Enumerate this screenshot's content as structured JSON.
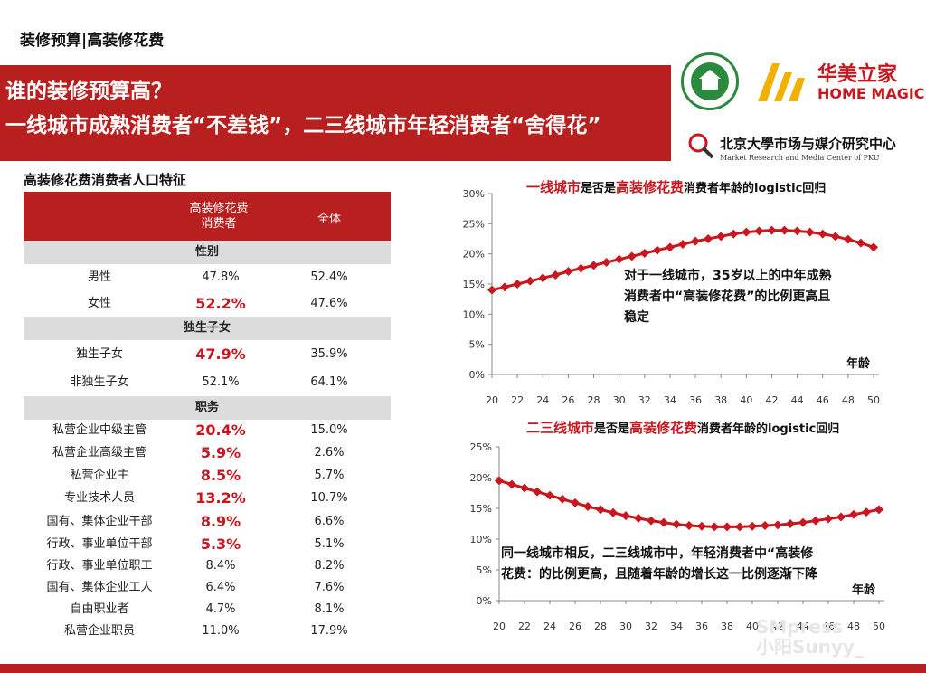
{
  "top_title": "装修预算|高装修花费",
  "banner": {
    "line1": "谁的装修预算高？",
    "line2": "一线城市成熟消费者“不差钱”，二三线城市年轻消费者“舍得花”"
  },
  "logos": {
    "home_magic_cn": "华美立家",
    "home_magic_en": "HOME MAGIC",
    "pku_cn": "北京大學市场与媒介研究中心",
    "pku_en": "Market Research and Media Center of PKU"
  },
  "table": {
    "title": "高装修花费消费者人口特征",
    "col1_line1": "高装修花费",
    "col1_line2": "消费者",
    "col2": "全体",
    "sections": [
      {
        "name": "性别",
        "rows": [
          {
            "label": "男性",
            "v1": "47.8%",
            "v2": "52.4%",
            "hl": false
          },
          {
            "label": "女性",
            "v1": "52.2%",
            "v2": "47.6%",
            "hl": true
          }
        ]
      },
      {
        "name": "独生子女",
        "rows": [
          {
            "label": "独生子女",
            "v1": "47.9%",
            "v2": "35.9%",
            "hl": true
          },
          {
            "label": "非独生子女",
            "v1": "52.1%",
            "v2": "64.1%",
            "hl": false
          }
        ]
      },
      {
        "name": "职务",
        "rows": [
          {
            "label": "私营企业中级主管",
            "v1": "20.4%",
            "v2": "15.0%",
            "hl": true
          },
          {
            "label": "私营企业高级主管",
            "v1": "5.9%",
            "v2": "2.6%",
            "hl": true
          },
          {
            "label": "私营企业主",
            "v1": "8.5%",
            "v2": "5.7%",
            "hl": true
          },
          {
            "label": "专业技术人员",
            "v1": "13.2%",
            "v2": "10.7%",
            "hl": true
          },
          {
            "label": "国有、集体企业干部",
            "v1": "8.9%",
            "v2": "6.6%",
            "hl": true
          },
          {
            "label": "行政、事业单位干部",
            "v1": "5.3%",
            "v2": "5.1%",
            "hl": true
          },
          {
            "label": "行政、事业单位职工",
            "v1": "8.4%",
            "v2": "8.2%",
            "hl": false
          },
          {
            "label": "国有、集体企业工人",
            "v1": "6.4%",
            "v2": "7.6%",
            "hl": false
          },
          {
            "label": "自由职业者",
            "v1": "4.7%",
            "v2": "8.1%",
            "hl": false
          },
          {
            "label": "私营企业职员",
            "v1": "11.0%",
            "v2": "17.9%",
            "hl": false
          }
        ]
      }
    ]
  },
  "charts": {
    "chart1": {
      "title_red1": "一线城市",
      "title_mid": "是否是",
      "title_red2": "高装修花费",
      "title_tail": "消费者年龄的logistic回归",
      "note_lines": [
        "对于一线城市，35岁以上的中年成熟",
        "消费者中“高装修花费”的比例更高且",
        "稳定"
      ],
      "xlabel": "年龄"
    },
    "chart2": {
      "title_red1": "二三线城市",
      "title_mid": "是否是",
      "title_red2": "高装修花费",
      "title_tail": "消费者年龄的logistic回归",
      "note_lines": [
        "同一线城市相反，二三线城市中，年轻消费者中“高装修",
        "花费：的比例更高，且随着年龄的增长这一比例逐渐下降"
      ],
      "xlabel": "年龄"
    }
  },
  "watermark": {
    "line1": "SMpress",
    "line2": "小阳Sunyy_"
  },
  "colors": {
    "accent": "#b81f1f",
    "highlight": "#c8171f",
    "section": "#dcdcdc"
  },
  "chart_data": [
    {
      "type": "line",
      "title": "一线城市是否是高装修花费消费者年龄的logistic回归",
      "xlabel": "年龄",
      "ylabel": "",
      "x": [
        20,
        21,
        22,
        23,
        24,
        25,
        26,
        27,
        28,
        29,
        30,
        31,
        32,
        33,
        34,
        35,
        36,
        37,
        38,
        39,
        40,
        41,
        42,
        43,
        44,
        45,
        46,
        47,
        48,
        49,
        50
      ],
      "series": [
        {
          "values": [
            14.0,
            14.5,
            15.0,
            15.5,
            16.0,
            16.5,
            17.1,
            17.6,
            18.1,
            18.6,
            19.1,
            19.6,
            20.1,
            20.6,
            21.1,
            21.6,
            22.1,
            22.5,
            22.9,
            23.3,
            23.6,
            23.8,
            23.9,
            23.9,
            23.8,
            23.6,
            23.3,
            22.9,
            22.4,
            21.8,
            21.1
          ]
        }
      ],
      "xticks": [
        20,
        22,
        24,
        26,
        28,
        30,
        32,
        34,
        36,
        38,
        40,
        42,
        44,
        46,
        48,
        50
      ],
      "yticks": [
        "0%",
        "5%",
        "10%",
        "15%",
        "20%",
        "25%",
        "30%"
      ],
      "ylim": [
        0,
        30
      ],
      "grid": false
    },
    {
      "type": "line",
      "title": "二三线城市是否是高装修花费消费者年龄的logistic回归",
      "xlabel": "年龄",
      "ylabel": "",
      "x": [
        20,
        21,
        22,
        23,
        24,
        25,
        26,
        27,
        28,
        29,
        30,
        31,
        32,
        33,
        34,
        35,
        36,
        37,
        38,
        39,
        40,
        41,
        42,
        43,
        44,
        45,
        46,
        47,
        48,
        49,
        50
      ],
      "series": [
        {
          "values": [
            19.5,
            18.9,
            18.3,
            17.7,
            17.1,
            16.5,
            15.9,
            15.3,
            14.8,
            14.3,
            13.8,
            13.4,
            13.0,
            12.7,
            12.4,
            12.2,
            12.1,
            12.0,
            12.0,
            12.0,
            12.1,
            12.2,
            12.3,
            12.5,
            12.7,
            13.0,
            13.3,
            13.6,
            14.0,
            14.4,
            14.8
          ]
        }
      ],
      "xticks": [
        20,
        22,
        24,
        26,
        28,
        30,
        32,
        34,
        36,
        38,
        40,
        42,
        44,
        46,
        48,
        50
      ],
      "yticks": [
        "0%",
        "5%",
        "10%",
        "15%",
        "20%",
        "25%"
      ],
      "ylim": [
        0,
        25
      ],
      "grid": false
    }
  ]
}
